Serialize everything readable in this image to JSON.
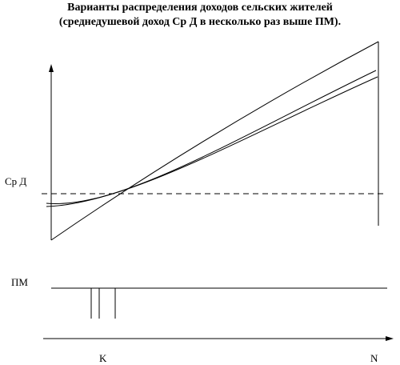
{
  "title": {
    "line1": "Варианты распределения доходов сельских жителей",
    "line2": "(среднедушевой доход Ср Д в несколько раз выше ПМ)."
  },
  "labels": {
    "avg_income": "Ср Д",
    "subsistence_min": "ПМ",
    "k_mark": "K",
    "n_mark": "N"
  },
  "colors": {
    "ink": "#000000",
    "background": "#ffffff"
  }
}
